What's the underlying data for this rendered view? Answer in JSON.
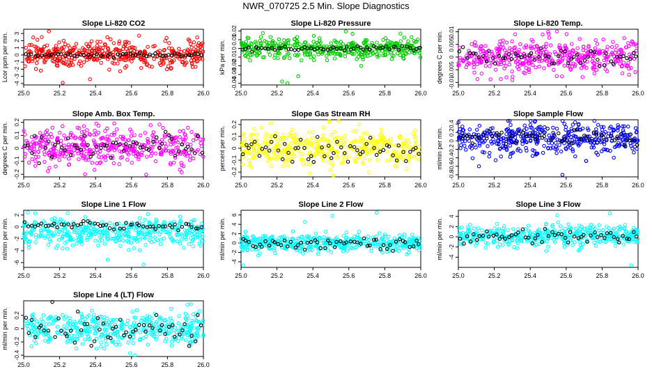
{
  "figure_title": "NWR_070725  2.5 Min. Slope Diagnostics",
  "chart_data": [
    {
      "type": "scatter",
      "title": "Slope Li-820 CO2",
      "ylabel": "Lcor ppm per min.",
      "color": "#ff0000",
      "xlim": [
        25.0,
        26.0
      ],
      "ylim": [
        -4.2,
        3.6
      ],
      "yticks": [
        -4,
        -3,
        -2,
        -1,
        0,
        1,
        2,
        3
      ],
      "x_ticks": [
        "25.0",
        "25.2",
        "25.4",
        "25.6",
        "25.8",
        "26.0"
      ],
      "series": [
        {
          "name": "colored",
          "center": 0.05,
          "spread": 0.9,
          "outlier_values": [
            3.3,
            -3.9,
            -3.4,
            2.7
          ]
        },
        {
          "name": "black",
          "center": 0.0,
          "spread": 0.15
        }
      ]
    },
    {
      "type": "scatter",
      "title": "Slope Li-820 Pressure",
      "ylabel": "kPa per min.",
      "color": "#00cc00",
      "xlim": [
        25.0,
        26.0
      ],
      "ylim": [
        -0.042,
        0.022
      ],
      "yticks": [
        -0.04,
        -0.03,
        -0.02,
        -0.01,
        0.0,
        0.01,
        0.02
      ],
      "x_ticks": [
        "25.0",
        "25.2",
        "25.4",
        "25.6",
        "25.8",
        "26.0"
      ],
      "series": [
        {
          "name": "colored",
          "center": 0.0,
          "spread": 0.006,
          "outlier_values": [
            -0.038,
            -0.04,
            -0.032,
            0.017
          ]
        },
        {
          "name": "black",
          "center": 0.0,
          "spread": 0.0015
        }
      ]
    },
    {
      "type": "scatter",
      "title": "Slope Li-820 Temp.",
      "ylabel": "degrees C per min.",
      "color": "#ff00ff",
      "xlim": [
        25.0,
        26.0
      ],
      "ylim": [
        -0.011,
        0.011
      ],
      "yticks": [
        -0.01,
        -0.005,
        0.0,
        0.005,
        0.01
      ],
      "x_ticks": [
        "25.0",
        "25.2",
        "25.4",
        "25.6",
        "25.8",
        "26.0"
      ],
      "series": [
        {
          "name": "colored",
          "center": 0.0,
          "spread": 0.0035,
          "outlier_values": [
            0.009,
            -0.009,
            -0.008
          ]
        },
        {
          "name": "black",
          "center": 0.0,
          "spread": 0.002
        }
      ]
    },
    {
      "type": "scatter",
      "title": "Slope Amb. Box Temp.",
      "ylabel": "degrees C per min.",
      "color": "#ff00ff",
      "xlim": [
        25.0,
        26.0
      ],
      "ylim": [
        -0.22,
        0.22
      ],
      "yticks": [
        -0.2,
        -0.1,
        0.0,
        0.1,
        0.2
      ],
      "x_ticks": [
        "25.0",
        "25.2",
        "25.4",
        "25.6",
        "25.8",
        "26.0"
      ],
      "series": [
        {
          "name": "colored",
          "center": 0.02,
          "spread": 0.07,
          "outlier_values": [
            0.19,
            -0.2,
            0.17
          ]
        },
        {
          "name": "black",
          "center": 0.01,
          "spread": 0.05
        }
      ]
    },
    {
      "type": "scatter",
      "title": "Slope Gas Stream RH",
      "ylabel": "percent per min.",
      "color": "#ffff00",
      "xlim": [
        25.0,
        26.0
      ],
      "ylim": [
        -0.24,
        0.24
      ],
      "yticks": [
        -0.2,
        -0.1,
        0.0,
        0.1,
        0.2
      ],
      "x_ticks": [
        "25.0",
        "25.2",
        "25.4",
        "25.6",
        "25.8",
        "26.0"
      ],
      "series": [
        {
          "name": "colored",
          "center": 0.0,
          "spread": 0.08,
          "outlier_values": [
            0.22,
            -0.21,
            0.21
          ]
        },
        {
          "name": "black",
          "center": 0.0,
          "spread": 0.06
        }
      ]
    },
    {
      "type": "scatter",
      "title": "Slope Sample Flow",
      "ylabel": "ml/min per min.",
      "color": "#0000ff",
      "xlim": [
        25.0,
        26.0
      ],
      "ylim": [
        -0.85,
        0.5
      ],
      "yticks": [
        -0.8,
        -0.6,
        -0.4,
        -0.2,
        0.0,
        0.2,
        0.4
      ],
      "x_ticks": [
        "25.0",
        "25.2",
        "25.4",
        "25.6",
        "25.8",
        "26.0"
      ],
      "series": [
        {
          "name": "colored",
          "center": 0.05,
          "spread": 0.18,
          "outlier_values": [
            -0.8,
            0.45,
            -0.6
          ]
        },
        {
          "name": "black",
          "center": 0.1,
          "spread": 0.1
        }
      ]
    },
    {
      "type": "scatter",
      "title": "Slope Line 1 Flow",
      "ylabel": "ml/min per min.",
      "color": "#00ffff",
      "xlim": [
        25.0,
        26.0
      ],
      "ylim": [
        -6.8,
        2.8
      ],
      "yticks": [
        -6,
        -4,
        -2,
        0,
        2
      ],
      "x_ticks": [
        "25.0",
        "25.2",
        "25.4",
        "25.6",
        "25.8",
        "26.0"
      ],
      "series": [
        {
          "name": "colored",
          "center": -1.0,
          "spread": 1.2,
          "outlier_values": [
            -6.3,
            -5.5,
            2.3
          ]
        },
        {
          "name": "black",
          "center": 0.2,
          "spread": 0.3
        }
      ]
    },
    {
      "type": "scatter",
      "title": "Slope Line 2 Flow",
      "ylabel": "ml/min per min.",
      "color": "#00ffff",
      "xlim": [
        25.0,
        26.0
      ],
      "ylim": [
        -5.2,
        7.0
      ],
      "yticks": [
        -4,
        -2,
        0,
        2,
        4,
        6
      ],
      "x_ticks": [
        "25.0",
        "25.2",
        "25.4",
        "25.6",
        "25.8",
        "26.0"
      ],
      "series": [
        {
          "name": "colored",
          "center": 0.0,
          "spread": 0.9,
          "outlier_values": [
            6.5,
            5.8,
            -4.8,
            4.5
          ]
        },
        {
          "name": "black",
          "center": 0.0,
          "spread": 0.7
        }
      ]
    },
    {
      "type": "scatter",
      "title": "Slope Line 3 Flow",
      "ylabel": "ml/min per min.",
      "color": "#00ffff",
      "xlim": [
        25.0,
        26.0
      ],
      "ylim": [
        -6.0,
        5.2
      ],
      "yticks": [
        -4,
        -2,
        0,
        2,
        4
      ],
      "x_ticks": [
        "25.0",
        "25.2",
        "25.4",
        "25.6",
        "25.8",
        "26.0"
      ],
      "series": [
        {
          "name": "colored",
          "center": 0.2,
          "spread": 1.0,
          "outlier_values": [
            4.6,
            4.2,
            -5.6
          ]
        },
        {
          "name": "black",
          "center": 0.2,
          "spread": 0.7
        }
      ]
    },
    {
      "type": "scatter",
      "title": "Slope Line 4 (LT) Flow",
      "ylabel": "ml/min per min.",
      "color": "#00ffff",
      "xlim": [
        25.0,
        26.0
      ],
      "ylim": [
        -0.42,
        0.42
      ],
      "yticks": [
        -0.4,
        -0.2,
        0.0,
        0.2
      ],
      "x_ticks": [
        "25.0",
        "25.2",
        "25.4",
        "25.6",
        "25.8",
        "26.0"
      ],
      "series": [
        {
          "name": "colored",
          "center": 0.0,
          "spread": 0.12,
          "outlier_values": [
            0.37,
            -0.37,
            0.36
          ]
        },
        {
          "name": "black",
          "center": 0.0,
          "spread": 0.14
        }
      ]
    }
  ]
}
